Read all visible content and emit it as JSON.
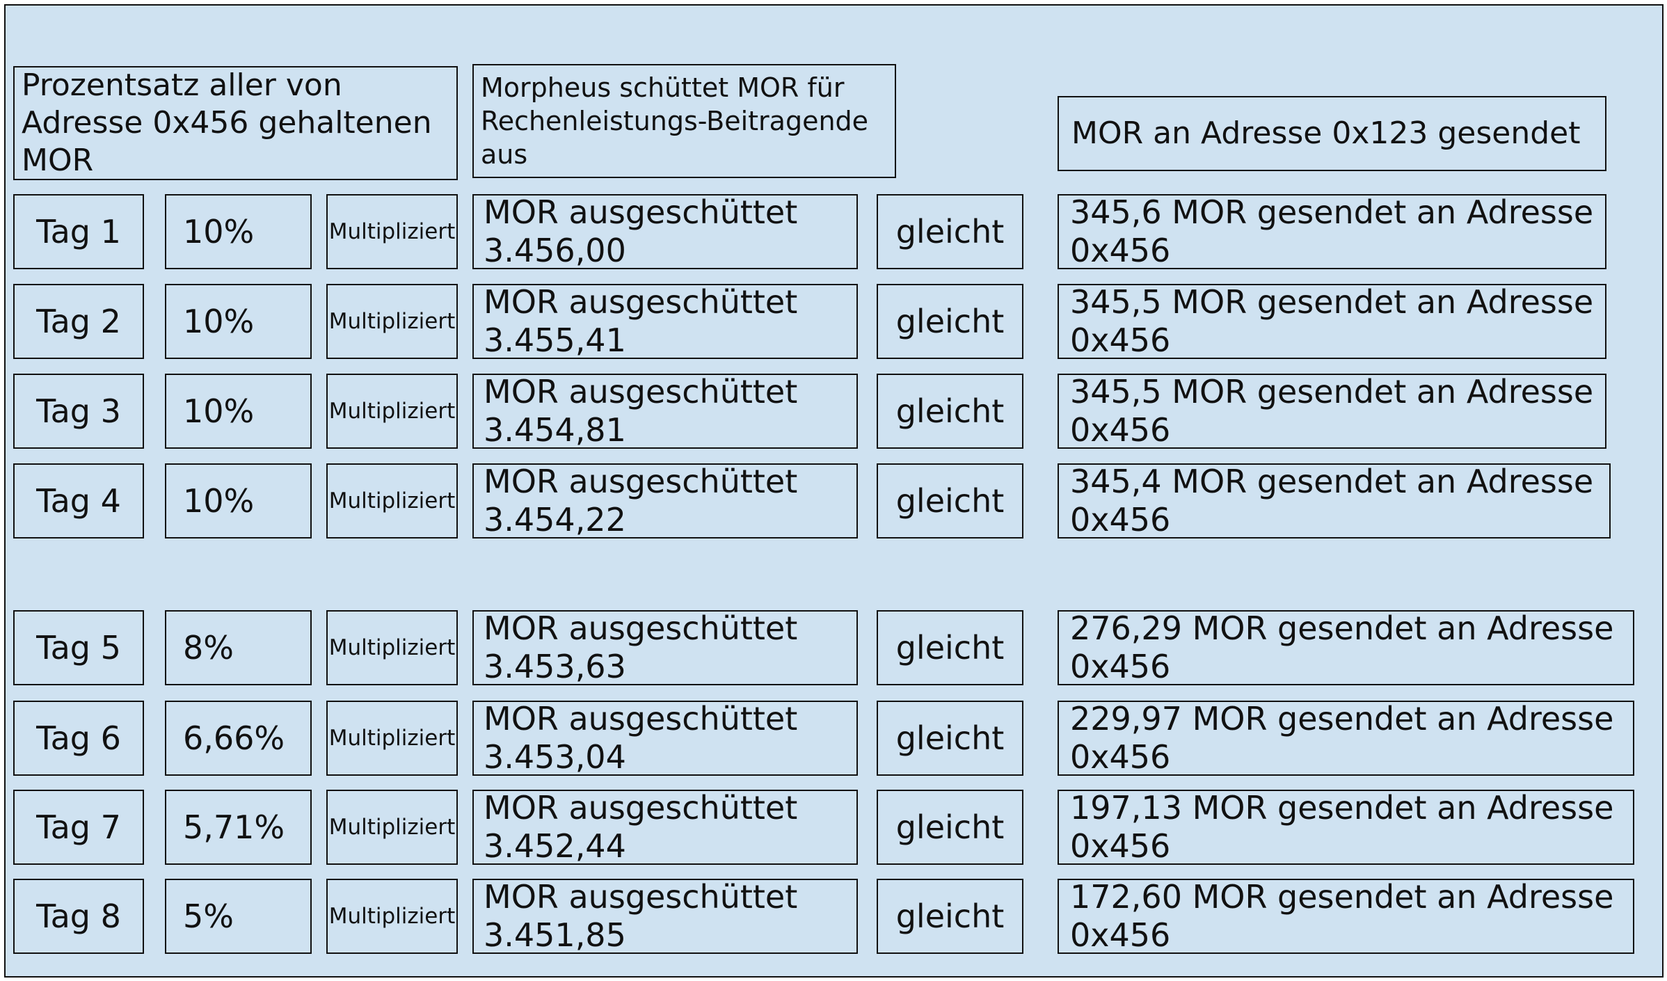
{
  "headers": {
    "percentage": "Prozentsatz aller von Adresse 0x456 gehaltenen MOR",
    "distribution": "Morpheus schüttet MOR für Rechenleistungs-Beitragende aus",
    "sent": "MOR an Adresse 0x123 gesendet"
  },
  "operators": {
    "multiply": "Multipliziert",
    "equals": "gleicht"
  },
  "rows": [
    {
      "day": "Tag 1",
      "percent": "10%",
      "distributed": "MOR ausgeschüttet 3.456,00",
      "result": "345,6 MOR gesendet an Adresse 0x456"
    },
    {
      "day": "Tag 2",
      "percent": "10%",
      "distributed": "MOR ausgeschüttet 3.455,41",
      "result": "345,5 MOR gesendet an Adresse 0x456"
    },
    {
      "day": "Tag 3",
      "percent": "10%",
      "distributed": "MOR ausgeschüttet 3.454,81",
      "result": "345,5 MOR gesendet an Adresse 0x456"
    },
    {
      "day": "Tag 4",
      "percent": "10%",
      "distributed": "MOR ausgeschüttet 3.454,22",
      "result": "345,4 MOR gesendet an Adresse 0x456"
    },
    {
      "day": "Tag 5",
      "percent": "8%",
      "distributed": "MOR ausgeschüttet 3.453,63",
      "result": "276,29 MOR gesendet an Adresse 0x456"
    },
    {
      "day": "Tag 6",
      "percent": "6,66%",
      "distributed": "MOR ausgeschüttet 3.453,04",
      "result": "229,97 MOR gesendet an Adresse 0x456"
    },
    {
      "day": "Tag 7",
      "percent": "5,71%",
      "distributed": "MOR ausgeschüttet 3.452,44",
      "result": "197,13 MOR gesendet an Adresse 0x456"
    },
    {
      "day": "Tag 8",
      "percent": "5%",
      "distributed": "MOR ausgeschüttet 3.451,85",
      "result": "172,60 MOR gesendet an Adresse 0x456"
    }
  ]
}
